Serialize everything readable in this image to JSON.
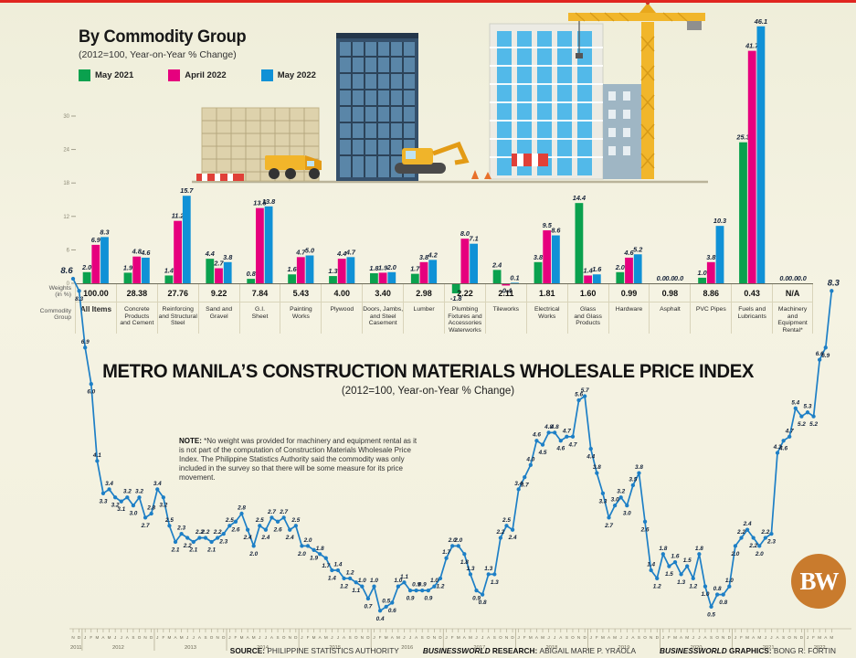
{
  "header": {
    "title": "By Commodity Group",
    "subtitle": "(2012=100, Year-on-Year % Change)"
  },
  "legend": [
    {
      "label": "May 2021",
      "color": "#0aa14e"
    },
    {
      "label": "April 2022",
      "color": "#e6007e"
    },
    {
      "label": "May 2022",
      "color": "#1091d6"
    }
  ],
  "row_labels": {
    "weights": "Weights\n(in %)",
    "commodity": "Commodity\nGroup"
  },
  "main_title": {
    "title": "METRO MANILA’S CONSTRUCTION MATERIALS WHOLESALE PRICE INDEX",
    "subtitle": "(2012=100, Year-on-Year % Change)"
  },
  "note": {
    "label": "NOTE:",
    "text": " *No weight was provided for machinery and equipment rental as it is not part of the computation of Construction Materials Wholesale Price Index. The Philippine Statistics Authority said the commodity was only included in the survey so that there will be some measure for its price movement."
  },
  "footer": {
    "segments": [
      {
        "bw": "",
        "label": "SOURCE:",
        "value": "PHILIPPINE STATISTICS AUTHORITY"
      },
      {
        "bw": "BUSINESSWORLD",
        "label": "RESEARCH:",
        "value": "ABIGAIL MARIE P. YRAOLA"
      },
      {
        "bw": "BUSINESSWORLD",
        "label": "GRAPHICS:",
        "value": "BONG R. FORTIN"
      }
    ]
  },
  "logo": {
    "text": "BW",
    "color": "#c97b2d"
  },
  "colors": {
    "green": "#0aa14e",
    "pink": "#e6007e",
    "blue": "#1091d6",
    "line": "#1d7fc6",
    "accent_red": "#e0261f"
  },
  "chart_data": [
    {
      "type": "bar",
      "title": "By Commodity Group",
      "subtitle": "(2012=100, Year-on-Year % Change)",
      "ylim": [
        0,
        30
      ],
      "yticks": [
        0,
        6,
        12,
        18,
        24,
        30
      ],
      "legend_position": "top-left",
      "grid": false,
      "categories": [
        {
          "label": "All Items",
          "weight": "100.00"
        },
        {
          "label": "Concrete\nProducts\nand Cement",
          "weight": "28.38"
        },
        {
          "label": "Reinforcing\nand Structural\nSteel",
          "weight": "27.76"
        },
        {
          "label": "Sand and\nGravel",
          "weight": "9.22"
        },
        {
          "label": "G.I.\nSheet",
          "weight": "7.84"
        },
        {
          "label": "Painting\nWorks",
          "weight": "5.43"
        },
        {
          "label": "Plywood",
          "weight": "4.00"
        },
        {
          "label": "Doors, Jambs,\nand Steel\nCasement",
          "weight": "3.40"
        },
        {
          "label": "Lumber",
          "weight": "2.98"
        },
        {
          "label": "Plumbing\nFixtures and\nAccessories\nWaterworks",
          "weight": "2.22"
        },
        {
          "label": "Tileworks",
          "weight": "2.11"
        },
        {
          "label": "Electrical\nWorks",
          "weight": "1.81"
        },
        {
          "label": "Glass\nand Glass\nProducts",
          "weight": "1.60"
        },
        {
          "label": "Hardware",
          "weight": "0.99"
        },
        {
          "label": "Asphalt",
          "weight": "0.98"
        },
        {
          "label": "PVC Pipes",
          "weight": "8.86"
        },
        {
          "label": "Fuels and\nLubricants",
          "weight": "0.43"
        },
        {
          "label": "Machinery\nand\nEquipment\nRental*",
          "weight": "N/A"
        }
      ],
      "series": [
        {
          "name": "May 2021",
          "color": "#0aa14e",
          "values": [
            2.0,
            1.9,
            1.4,
            4.4,
            0.8,
            1.6,
            1.3,
            1.8,
            1.7,
            -1.8,
            2.4,
            3.8,
            14.4,
            2.0,
            0.0,
            1.0,
            25.3,
            0.0
          ]
        },
        {
          "name": "April 2022",
          "color": "#e6007e",
          "values": [
            6.9,
            4.8,
            11.2,
            2.7,
            13.5,
            4.7,
            4.4,
            1.9,
            3.8,
            8.0,
            -0.4,
            9.5,
            1.4,
            4.6,
            0.0,
            3.8,
            41.7,
            0.0
          ]
        },
        {
          "name": "May 2022",
          "color": "#1091d6",
          "values": [
            8.3,
            4.6,
            15.7,
            3.8,
            13.8,
            5.0,
            4.7,
            2.0,
            4.2,
            7.1,
            0.1,
            8.6,
            1.6,
            5.2,
            0.0,
            10.3,
            46.1,
            0.0
          ]
        }
      ]
    },
    {
      "type": "line",
      "title": "METRO MANILA’S CONSTRUCTION MATERIALS WHOLESALE PRICE INDEX",
      "subtitle": "(2012=100, Year-on-Year % Change)",
      "color": "#1d7fc6",
      "grid": false,
      "month_letters": [
        "J",
        "F",
        "M",
        "A",
        "M",
        "J",
        "J",
        "A",
        "S",
        "O",
        "N",
        "D"
      ],
      "years": [
        {
          "year": "2011",
          "months": [
            "N",
            "D"
          ],
          "values": [
            8.6,
            8.3
          ]
        },
        {
          "year": "2012",
          "values": [
            6.9,
            6.0,
            4.1,
            3.3,
            3.4,
            3.2,
            3.1,
            3.2,
            3.0,
            3.2,
            2.7,
            2.8
          ]
        },
        {
          "year": "2013",
          "values": [
            3.4,
            3.2,
            2.5,
            2.1,
            2.3,
            2.2,
            2.1,
            2.2,
            2.2,
            2.1,
            2.2,
            2.3
          ]
        },
        {
          "year": "2014",
          "values": [
            2.5,
            2.6,
            2.8,
            2.4,
            2.0,
            2.5,
            2.4,
            2.7,
            2.6,
            2.7,
            2.4,
            2.5
          ]
        },
        {
          "year": "2015",
          "values": [
            2.0,
            2.0,
            1.9,
            1.8,
            1.7,
            1.4,
            1.4,
            1.2,
            1.2,
            1.1,
            1.0,
            0.7
          ]
        },
        {
          "year": "2016",
          "values": [
            1.0,
            0.4,
            0.5,
            0.6,
            1.0,
            1.1,
            0.9,
            0.9,
            0.9,
            0.9,
            1.0,
            1.2
          ]
        },
        {
          "year": "2017",
          "values": [
            1.7,
            2.0,
            2.0,
            1.8,
            1.3,
            0.9,
            0.8,
            1.3,
            1.3,
            2.2,
            2.5,
            2.4
          ]
        },
        {
          "year": "2018",
          "values": [
            3.4,
            3.7,
            4.0,
            4.6,
            4.5,
            4.8,
            4.8,
            4.6,
            4.7,
            4.7,
            5.6,
            5.7
          ]
        },
        {
          "year": "2019",
          "values": [
            4.4,
            3.8,
            3.3,
            2.7,
            3.0,
            3.2,
            3.0,
            3.5,
            3.8,
            2.6,
            1.4,
            1.2
          ]
        },
        {
          "year": "2020",
          "values": [
            1.8,
            1.5,
            1.6,
            1.3,
            1.5,
            1.2,
            1.8,
            1.0,
            0.5,
            0.8,
            0.8,
            1.0
          ]
        },
        {
          "year": "2021",
          "values": [
            2.0,
            2.2,
            2.4,
            2.2,
            2.0,
            2.2,
            2.3,
            4.3,
            4.6,
            4.7,
            5.4,
            5.2
          ]
        },
        {
          "year": "2022",
          "months": [
            "J",
            "F",
            "M",
            "A",
            "M"
          ],
          "values": [
            5.3,
            5.2,
            6.6,
            6.9,
            8.3
          ]
        }
      ]
    }
  ]
}
